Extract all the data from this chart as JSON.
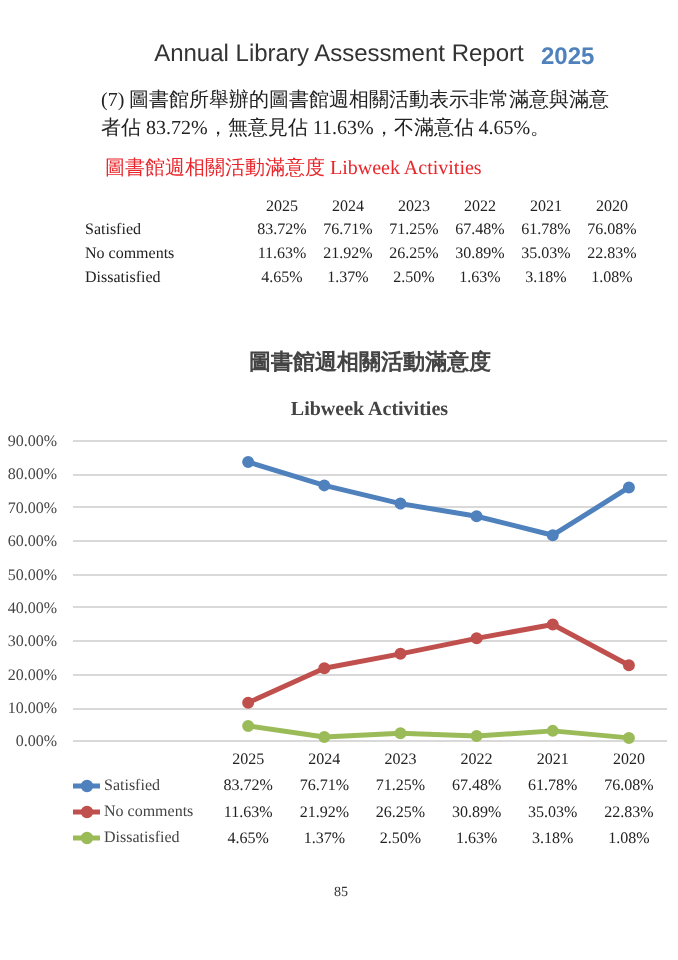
{
  "chart_data": {
    "type": "line",
    "title": "圖書館週相關活動滿意度",
    "subtitle": "Libweek Activities",
    "categories": [
      "2025",
      "2024",
      "2023",
      "2022",
      "2021",
      "2020"
    ],
    "series": [
      {
        "name": "Satisfied",
        "color": "#4f81bd",
        "values": [
          83.72,
          76.71,
          71.25,
          67.48,
          61.78,
          76.08
        ],
        "value_labels": [
          "83.72%",
          "76.71%",
          "71.25%",
          "67.48%",
          "61.78%",
          "76.08%"
        ]
      },
      {
        "name": "No comments",
        "color": "#c0504d",
        "values": [
          11.63,
          21.92,
          26.25,
          30.89,
          35.03,
          22.83
        ],
        "value_labels": [
          "11.63%",
          "21.92%",
          "26.25%",
          "30.89%",
          "35.03%",
          "22.83%"
        ]
      },
      {
        "name": "Dissatisfied",
        "color": "#9bbb59",
        "values": [
          4.65,
          1.37,
          2.5,
          1.63,
          3.18,
          1.08
        ],
        "value_labels": [
          "4.65%",
          "1.37%",
          "2.50%",
          "1.63%",
          "3.18%",
          "1.08%"
        ]
      }
    ],
    "ylim": [
      0,
      90
    ],
    "yticks": [
      {
        "value": 0,
        "label": "0.00%"
      },
      {
        "value": 10,
        "label": "10.00%"
      },
      {
        "value": 20,
        "label": "20.00%"
      },
      {
        "value": 30,
        "label": "30.00%"
      },
      {
        "value": 40,
        "label": "40.00%"
      },
      {
        "value": 50,
        "label": "50.00%"
      },
      {
        "value": 60,
        "label": "60.00%"
      },
      {
        "value": 70,
        "label": "70.00%"
      },
      {
        "value": 80,
        "label": "80.00%"
      },
      {
        "value": 90,
        "label": "90.00%"
      }
    ],
    "grid": "y",
    "legend": "bottom",
    "marker": "circle",
    "line_style": "solid",
    "annotations": [
      "Annual Library Assessment Report",
      "2025",
      "(7) 圖書館所舉辦的圖書館週相關活動表示非常滿意與滿意者佔 83.72%，無意見佔 11.63%，不滿意佔 4.65%。",
      "圖書館週相關活動滿意度 Libweek Activities",
      "85"
    ]
  }
}
